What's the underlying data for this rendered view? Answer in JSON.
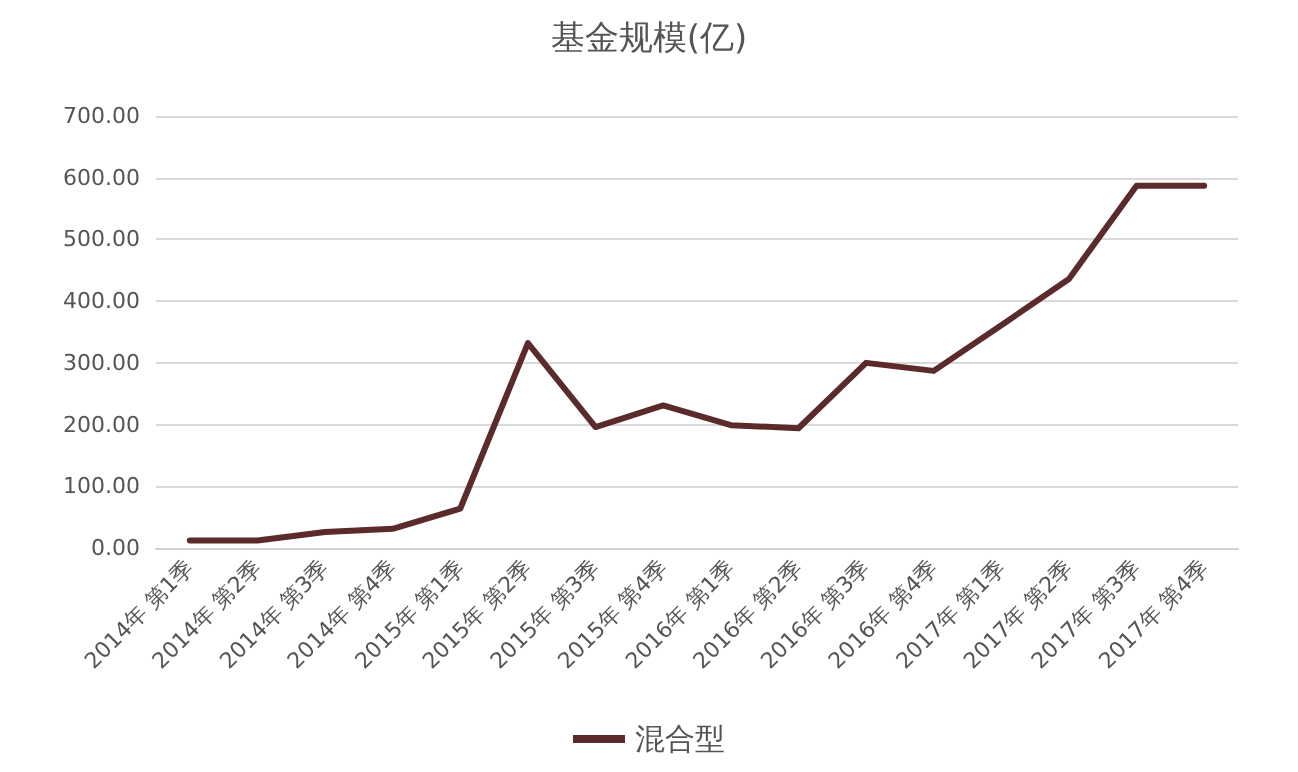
{
  "chart_data": {
    "type": "line",
    "title": "基金规模(亿)",
    "categories": [
      "2014年 第1季",
      "2014年 第2季",
      "2014年 第3季",
      "2014年 第4季",
      "2015年 第1季",
      "2015年 第2季",
      "2015年 第3季",
      "2015年 第4季",
      "2016年 第1季",
      "2016年 第2季",
      "2016年 第3季",
      "2016年 第4季",
      "2017年 第1季",
      "2017年 第2季",
      "2017年 第3季",
      "2017年 第4季"
    ],
    "series": [
      {
        "name": "混合型",
        "color": "#5b2a2a",
        "values": [
          12,
          12,
          26,
          31,
          64,
          332,
          196,
          231,
          199,
          194,
          300,
          287,
          361,
          436,
          587,
          587
        ]
      }
    ],
    "ylim": [
      0,
      700
    ],
    "yticks": [
      {
        "value": 0,
        "label": "0.00"
      },
      {
        "value": 100,
        "label": "100.00"
      },
      {
        "value": 200,
        "label": "200.00"
      },
      {
        "value": 300,
        "label": "300.00"
      },
      {
        "value": 400,
        "label": "400.00"
      },
      {
        "value": 500,
        "label": "500.00"
      },
      {
        "value": 600,
        "label": "600.00"
      },
      {
        "value": 700,
        "label": "700.00"
      }
    ],
    "grid": "y",
    "legend": "bottom",
    "marker": "none",
    "line_style": "solid"
  }
}
